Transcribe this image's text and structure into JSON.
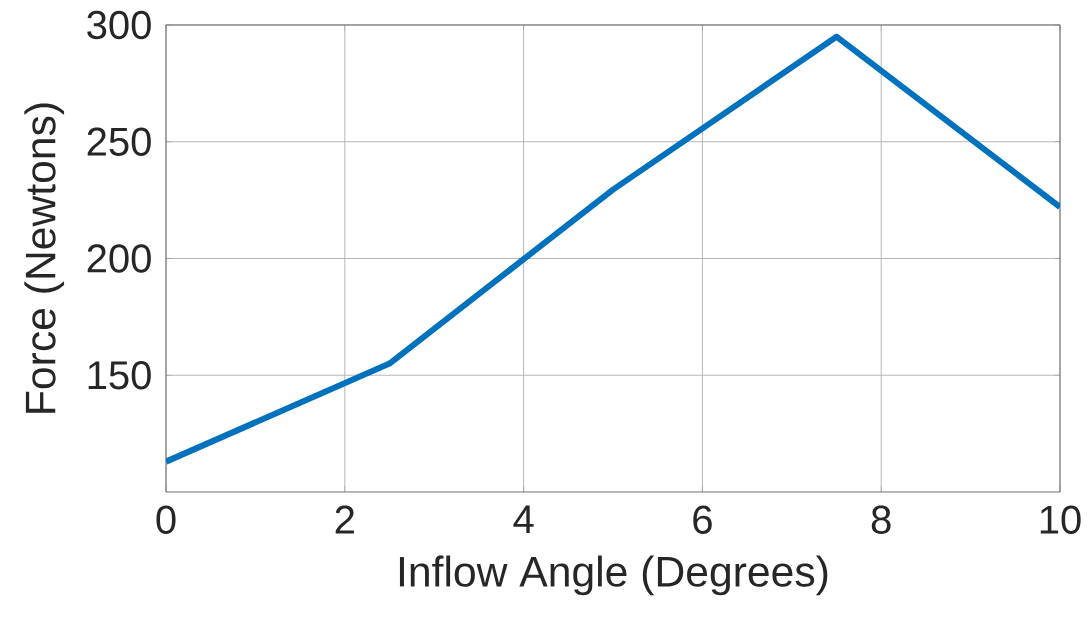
{
  "chart_data": {
    "type": "line",
    "xlabel": "Inflow Angle (Degrees)",
    "ylabel": "Force (Newtons)",
    "x": [
      0,
      2.5,
      5,
      7.5,
      10
    ],
    "series": [
      {
        "color": "#0072bd",
        "values": [
          113,
          155,
          229.5,
          295,
          222
        ]
      }
    ],
    "xlim": [
      0,
      10
    ],
    "xticks": [
      0,
      2,
      4,
      6,
      8,
      10
    ],
    "ylim": [
      100,
      300
    ],
    "yticks": [
      150,
      200,
      250,
      300
    ],
    "grid": true,
    "line_style": "solid"
  }
}
